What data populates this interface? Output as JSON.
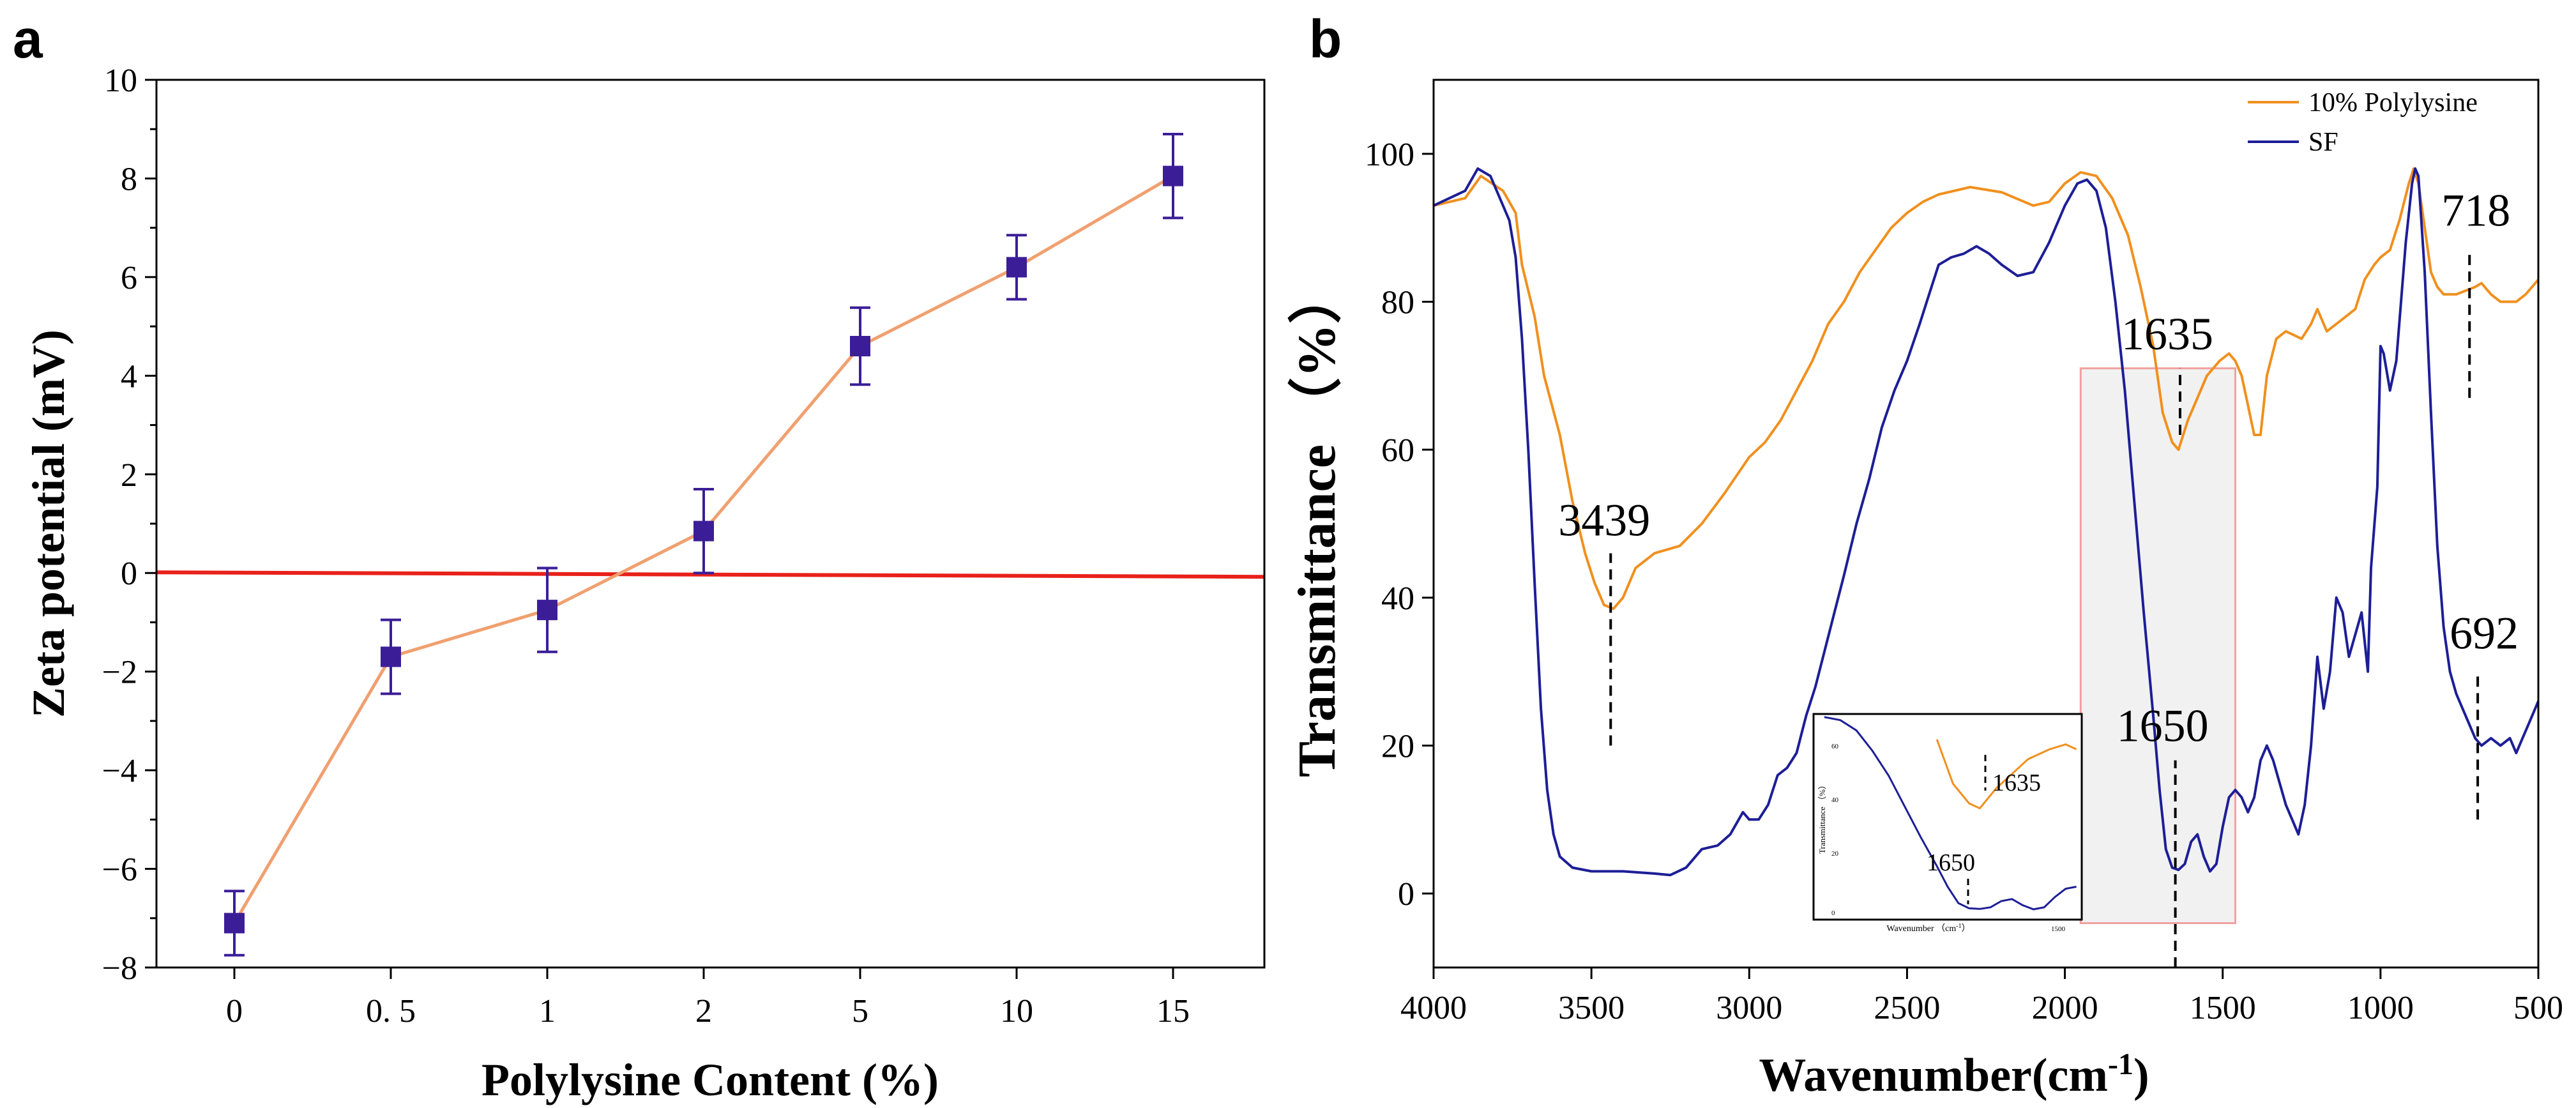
{
  "figure": {
    "panels": [
      {
        "letter": "a"
      },
      {
        "letter": "b"
      }
    ]
  },
  "chart_data": [
    {
      "type": "line",
      "panel": "a",
      "title": "",
      "xlabel": "Polylysine Content (%)",
      "ylabel": "Zeta potential (mV)",
      "categories": [
        "0",
        "0. 5",
        "1",
        "2",
        "5",
        "10",
        "15"
      ],
      "series": [
        {
          "values": [
            -7.1,
            -1.7,
            -0.75,
            0.85,
            4.6,
            6.2,
            8.05
          ],
          "errors": [
            0.65,
            0.75,
            0.85,
            0.85,
            0.78,
            0.65,
            0.85
          ],
          "color": "#f0a070",
          "marker_color": "#3b1e97"
        }
      ],
      "reference_line": {
        "y": 0,
        "color": "#e8211a"
      },
      "ylim": [
        -8,
        10
      ],
      "yticks": [
        -8,
        -6,
        -4,
        -2,
        0,
        2,
        4,
        6,
        8,
        10
      ],
      "ytick_labels": [
        "−8",
        "−6",
        "−4",
        "−2",
        "0",
        "2",
        "4",
        "6",
        "8",
        "10"
      ],
      "grid": false
    },
    {
      "type": "line",
      "panel": "b",
      "title": "",
      "xlabel": "Wavenumber(cm",
      "xlabel_sup": "-1",
      "xlabel_suffix": ")",
      "ylabel": "Transmittance （%）",
      "xlim": [
        4000,
        500
      ],
      "ylim": [
        -10,
        110
      ],
      "xticks": [
        4000,
        3500,
        3000,
        2500,
        2000,
        1500,
        1000,
        500
      ],
      "yticks": [
        0,
        20,
        40,
        60,
        80,
        100
      ],
      "legend_position": "top-right",
      "grid": false,
      "series": [
        {
          "name": "10% Polylysine",
          "color": "#f0901e",
          "points": [
            [
              4000,
              93
            ],
            [
              3900,
              94
            ],
            [
              3850,
              97
            ],
            [
              3780,
              95
            ],
            [
              3740,
              92
            ],
            [
              3720,
              85
            ],
            [
              3680,
              78
            ],
            [
              3650,
              70
            ],
            [
              3600,
              62
            ],
            [
              3560,
              53
            ],
            [
              3520,
              46
            ],
            [
              3490,
              42
            ],
            [
              3460,
              39
            ],
            [
              3430,
              38.5
            ],
            [
              3400,
              40
            ],
            [
              3360,
              44
            ],
            [
              3300,
              46
            ],
            [
              3220,
              47
            ],
            [
              3150,
              50
            ],
            [
              3080,
              54
            ],
            [
              3000,
              59
            ],
            [
              2950,
              61
            ],
            [
              2900,
              64
            ],
            [
              2850,
              68
            ],
            [
              2800,
              72
            ],
            [
              2750,
              77
            ],
            [
              2700,
              80
            ],
            [
              2650,
              84
            ],
            [
              2600,
              87
            ],
            [
              2550,
              90
            ],
            [
              2500,
              92
            ],
            [
              2450,
              93.5
            ],
            [
              2400,
              94.5
            ],
            [
              2300,
              95.5
            ],
            [
              2200,
              94.8
            ],
            [
              2100,
              93
            ],
            [
              2050,
              93.5
            ],
            [
              2000,
              96
            ],
            [
              1950,
              97.5
            ],
            [
              1900,
              97
            ],
            [
              1850,
              94
            ],
            [
              1800,
              89
            ],
            [
              1760,
              82
            ],
            [
              1720,
              74
            ],
            [
              1690,
              65
            ],
            [
              1660,
              61
            ],
            [
              1640,
              60
            ],
            [
              1610,
              64
            ],
            [
              1580,
              67
            ],
            [
              1550,
              70
            ],
            [
              1510,
              72
            ],
            [
              1480,
              73
            ],
            [
              1460,
              72
            ],
            [
              1440,
              70
            ],
            [
              1420,
              66
            ],
            [
              1400,
              62
            ],
            [
              1380,
              62
            ],
            [
              1360,
              70
            ],
            [
              1330,
              75
            ],
            [
              1300,
              76
            ],
            [
              1250,
              75
            ],
            [
              1220,
              77
            ],
            [
              1200,
              79
            ],
            [
              1170,
              76
            ],
            [
              1140,
              77
            ],
            [
              1110,
              78
            ],
            [
              1080,
              79
            ],
            [
              1050,
              83
            ],
            [
              1020,
              85
            ],
            [
              1000,
              86
            ],
            [
              970,
              87
            ],
            [
              940,
              91
            ],
            [
              910,
              96
            ],
            [
              895,
              98
            ],
            [
              880,
              96
            ],
            [
              860,
              90
            ],
            [
              840,
              84
            ],
            [
              820,
              82
            ],
            [
              800,
              81
            ],
            [
              760,
              81
            ],
            [
              730,
              81.5
            ],
            [
              700,
              82
            ],
            [
              680,
              82.5
            ],
            [
              650,
              81
            ],
            [
              620,
              80
            ],
            [
              600,
              80
            ],
            [
              570,
              80
            ],
            [
              540,
              81
            ],
            [
              520,
              82
            ],
            [
              500,
              83
            ]
          ]
        },
        {
          "name": "SF",
          "color": "#1d1e96",
          "points": [
            [
              4000,
              93
            ],
            [
              3900,
              95
            ],
            [
              3860,
              98
            ],
            [
              3820,
              97
            ],
            [
              3780,
              93
            ],
            [
              3760,
              91
            ],
            [
              3740,
              86
            ],
            [
              3720,
              75
            ],
            [
              3700,
              60
            ],
            [
              3680,
              42
            ],
            [
              3660,
              25
            ],
            [
              3640,
              14
            ],
            [
              3620,
              8
            ],
            [
              3600,
              5
            ],
            [
              3560,
              3.5
            ],
            [
              3500,
              3
            ],
            [
              3400,
              3
            ],
            [
              3300,
              2.7
            ],
            [
              3250,
              2.5
            ],
            [
              3200,
              3.5
            ],
            [
              3150,
              6
            ],
            [
              3100,
              6.5
            ],
            [
              3060,
              8
            ],
            [
              3020,
              11
            ],
            [
              3000,
              10
            ],
            [
              2970,
              10
            ],
            [
              2940,
              12
            ],
            [
              2910,
              16
            ],
            [
              2880,
              17
            ],
            [
              2850,
              19
            ],
            [
              2820,
              24
            ],
            [
              2790,
              28
            ],
            [
              2760,
              33
            ],
            [
              2730,
              38
            ],
            [
              2700,
              43
            ],
            [
              2660,
              50
            ],
            [
              2620,
              56
            ],
            [
              2580,
              63
            ],
            [
              2540,
              68
            ],
            [
              2500,
              72
            ],
            [
              2460,
              77
            ],
            [
              2430,
              81
            ],
            [
              2400,
              85
            ],
            [
              2360,
              86
            ],
            [
              2320,
              86.5
            ],
            [
              2280,
              87.5
            ],
            [
              2240,
              86.5
            ],
            [
              2200,
              85
            ],
            [
              2150,
              83.5
            ],
            [
              2100,
              84
            ],
            [
              2050,
              88
            ],
            [
              2000,
              93
            ],
            [
              1960,
              96
            ],
            [
              1930,
              96.5
            ],
            [
              1900,
              95
            ],
            [
              1870,
              90
            ],
            [
              1840,
              80
            ],
            [
              1810,
              68
            ],
            [
              1780,
              53
            ],
            [
              1750,
              38
            ],
            [
              1720,
              24
            ],
            [
              1700,
              14
            ],
            [
              1680,
              6
            ],
            [
              1660,
              3.5
            ],
            [
              1640,
              3.2
            ],
            [
              1620,
              4
            ],
            [
              1600,
              7
            ],
            [
              1580,
              8
            ],
            [
              1560,
              5
            ],
            [
              1540,
              3
            ],
            [
              1520,
              4
            ],
            [
              1500,
              9
            ],
            [
              1480,
              13
            ],
            [
              1460,
              14
            ],
            [
              1440,
              13
            ],
            [
              1420,
              11
            ],
            [
              1400,
              13
            ],
            [
              1380,
              18
            ],
            [
              1360,
              20
            ],
            [
              1340,
              18
            ],
            [
              1320,
              15
            ],
            [
              1300,
              12
            ],
            [
              1280,
              10
            ],
            [
              1260,
              8
            ],
            [
              1240,
              12
            ],
            [
              1220,
              20
            ],
            [
              1200,
              32
            ],
            [
              1180,
              25
            ],
            [
              1160,
              30
            ],
            [
              1140,
              40
            ],
            [
              1120,
              38
            ],
            [
              1100,
              32
            ],
            [
              1080,
              35
            ],
            [
              1060,
              38
            ],
            [
              1040,
              30
            ],
            [
              1030,
              44
            ],
            [
              1010,
              55
            ],
            [
              1000,
              74
            ],
            [
              990,
              73
            ],
            [
              970,
              68
            ],
            [
              950,
              72
            ],
            [
              920,
              88
            ],
            [
              900,
              96
            ],
            [
              890,
              98
            ],
            [
              880,
              97
            ],
            [
              860,
              84
            ],
            [
              840,
              65
            ],
            [
              820,
              47
            ],
            [
              800,
              36
            ],
            [
              780,
              30
            ],
            [
              760,
              27
            ],
            [
              740,
              25
            ],
            [
              720,
              23
            ],
            [
              700,
              21
            ],
            [
              680,
              20
            ],
            [
              650,
              21
            ],
            [
              620,
              20
            ],
            [
              590,
              21
            ],
            [
              570,
              19
            ],
            [
              550,
              21
            ],
            [
              530,
              23
            ],
            [
              500,
              26
            ]
          ]
        }
      ],
      "annotations": [
        {
          "text": "3439",
          "x": 3439,
          "line_y": [
            20,
            46
          ]
        },
        {
          "text": "1635",
          "x": 1635,
          "line_y": [
            62,
            71
          ]
        },
        {
          "text": "1650",
          "x": 1650,
          "line_y": [
            -10,
            18
          ]
        },
        {
          "text": "718",
          "x": 718,
          "line_y": [
            67,
            87
          ]
        },
        {
          "text": "692",
          "x": 692,
          "line_y": [
            10,
            30
          ]
        }
      ],
      "highlight_region": {
        "x": [
          1950,
          1460
        ],
        "y": [
          -4,
          71
        ]
      },
      "inset": {
        "xlabel": "Wavenumber （cm",
        "xlabel_sup": "-1",
        "xlabel_suffix": "）",
        "ylabel": "Transmittance （%）",
        "x_tick_right": "1500",
        "y_tick_labels": [
          "60",
          "40",
          "20",
          "0"
        ],
        "annotations": [
          {
            "text": "1635",
            "series": "10% Polylysine"
          },
          {
            "text": "1650",
            "series": "SF"
          }
        ]
      }
    }
  ]
}
